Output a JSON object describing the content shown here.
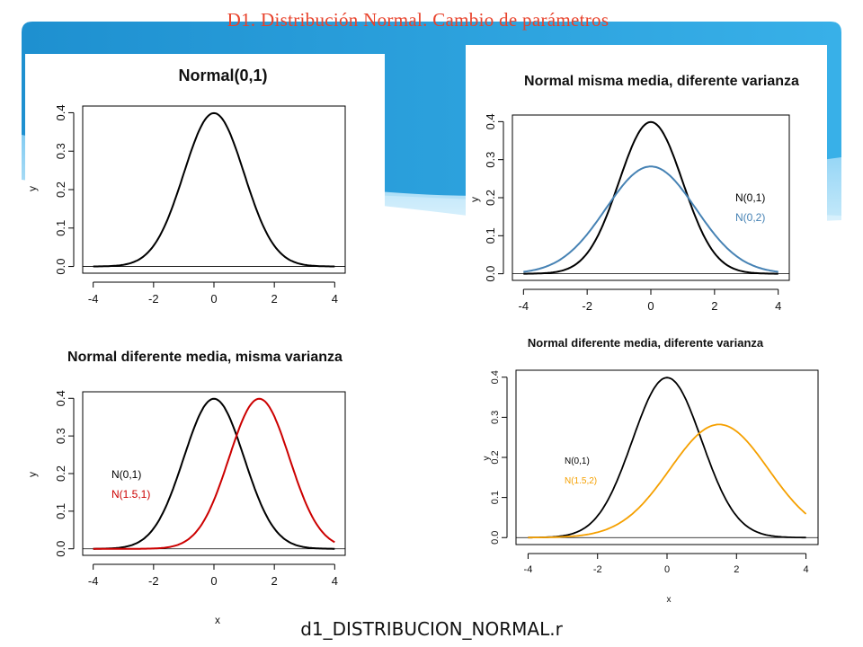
{
  "slide": {
    "title": "D1. Distribución Normal. Cambio de parámetros",
    "footer": "d1_DISTRIBUCION_NORMAL.r",
    "accent_color": "#2a9fd8",
    "title_color": "#e8422b"
  },
  "chart_data": [
    {
      "type": "line",
      "title": "Normal(0,1)",
      "xlabel": "",
      "ylabel": "y",
      "xlim": [
        -4,
        4
      ],
      "ylim": [
        0,
        0.4
      ],
      "x_ticks": [
        "-4",
        "-2",
        "0",
        "2",
        "4"
      ],
      "y_ticks": [
        "0.0",
        "0.1",
        "0.2",
        "0.3",
        "0.4"
      ],
      "grid": false,
      "legend_position": "none",
      "series": [
        {
          "mean": 0,
          "variance": 1,
          "color": "#000000"
        }
      ]
    },
    {
      "type": "line",
      "title": "Normal misma media, diferente varianza",
      "xlabel": "",
      "ylabel": "y",
      "xlim": [
        -4,
        4
      ],
      "ylim": [
        0,
        0.4
      ],
      "x_ticks": [
        "-4",
        "-2",
        "0",
        "2",
        "4"
      ],
      "y_ticks": [
        "0.0",
        "0.1",
        "0.2",
        "0.3",
        "0.4"
      ],
      "grid": false,
      "legend_position": "right",
      "series": [
        {
          "name": "N(0,1)",
          "mean": 0,
          "variance": 1,
          "color": "#000000"
        },
        {
          "name": "N(0,2)",
          "mean": 0,
          "variance": 2,
          "color": "#4682b4"
        }
      ]
    },
    {
      "type": "line",
      "title": "Normal diferente media, misma varianza",
      "xlabel": "x",
      "ylabel": "y",
      "xlim": [
        -4,
        4
      ],
      "ylim": [
        0,
        0.4
      ],
      "x_ticks": [
        "-4",
        "-2",
        "0",
        "2",
        "4"
      ],
      "y_ticks": [
        "0.0",
        "0.1",
        "0.2",
        "0.3",
        "0.4"
      ],
      "grid": false,
      "legend_position": "left",
      "series": [
        {
          "name": "N(0,1)",
          "mean": 0,
          "variance": 1,
          "color": "#000000"
        },
        {
          "name": "N(1.5,1)",
          "mean": 1.5,
          "variance": 1,
          "color": "#cc0000"
        }
      ]
    },
    {
      "type": "line",
      "title": "Normal diferente media, diferente varianza",
      "xlabel": "x",
      "ylabel": "y",
      "xlim": [
        -4,
        4
      ],
      "ylim": [
        0,
        0.4
      ],
      "x_ticks": [
        "-4",
        "-2",
        "0",
        "2",
        "4"
      ],
      "y_ticks": [
        "0.0",
        "0.1",
        "0.2",
        "0.3",
        "0.4"
      ],
      "grid": false,
      "legend_position": "left",
      "series": [
        {
          "name": "N(0,1)",
          "mean": 0,
          "variance": 1,
          "color": "#000000"
        },
        {
          "name": "N(1.5,2)",
          "mean": 1.5,
          "variance": 2,
          "color": "#f5a000"
        }
      ]
    }
  ]
}
